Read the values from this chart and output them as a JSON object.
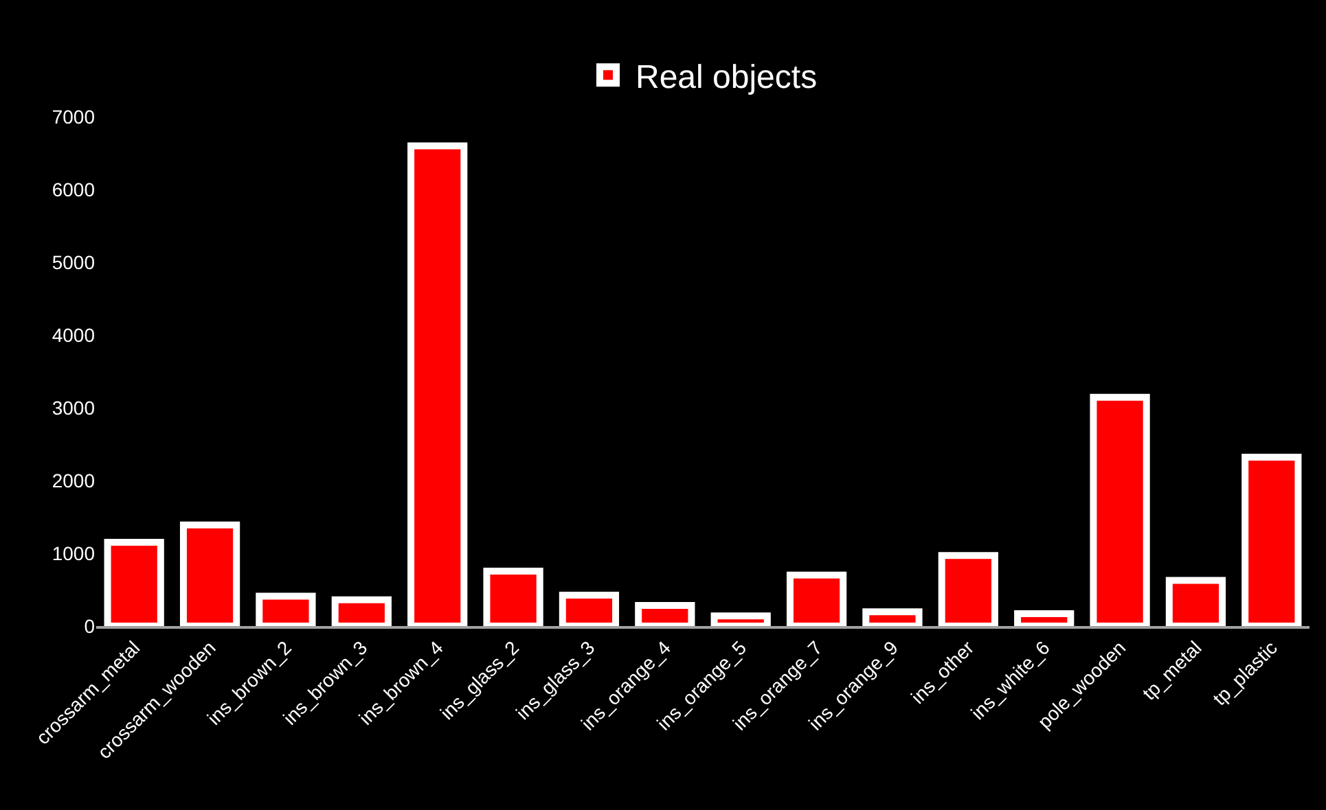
{
  "chart_data": {
    "type": "bar",
    "categories": [
      "crossarm_metal",
      "crossarm_wooden",
      "ins_brown_2",
      "ins_brown_3",
      "ins_brown_4",
      "ins_glass_2",
      "ins_glass_3",
      "ins_orange_4",
      "ins_orange_5",
      "ins_orange_7",
      "ins_orange_9",
      "ins_other",
      "ins_white_6",
      "pole_wooden",
      "tp_metal",
      "tp_plastic"
    ],
    "series": [
      {
        "name": "Real objects",
        "color": "#ff0000",
        "values": [
          1150,
          1390,
          410,
          360,
          6600,
          755,
          425,
          283,
          140,
          700,
          195,
          970,
          170,
          3145,
          628,
          2320
        ]
      }
    ],
    "ylim": [
      0,
      7000
    ],
    "yticks": [
      0,
      1000,
      2000,
      3000,
      4000,
      5000,
      6000,
      7000
    ],
    "grid": false,
    "legend": "top"
  }
}
